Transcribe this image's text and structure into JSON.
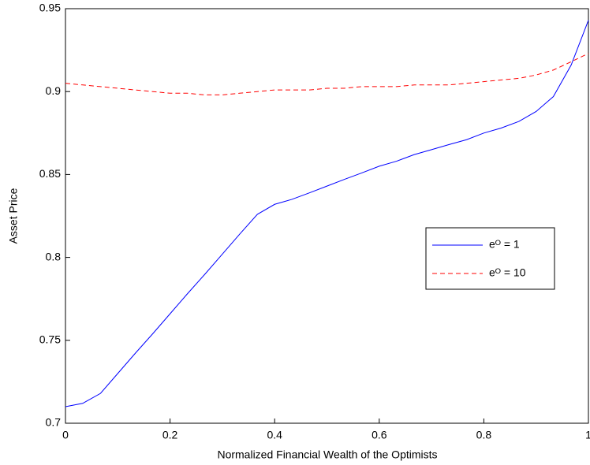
{
  "chart_data": {
    "type": "line",
    "xlabel": "Normalized Financial Wealth of the Optimists",
    "ylabel": "Asset Price",
    "x": [
      0,
      0.033,
      0.067,
      0.1,
      0.133,
      0.167,
      0.2,
      0.233,
      0.267,
      0.3,
      0.333,
      0.367,
      0.4,
      0.433,
      0.467,
      0.5,
      0.533,
      0.567,
      0.6,
      0.633,
      0.667,
      0.7,
      0.733,
      0.767,
      0.8,
      0.833,
      0.867,
      0.9,
      0.933,
      0.967,
      1
    ],
    "series": [
      {
        "name": "eᴼ = 1",
        "color": "#0000ff",
        "dash": "solid",
        "values": [
          0.71,
          0.712,
          0.718,
          0.73,
          0.742,
          0.754,
          0.766,
          0.778,
          0.79,
          0.802,
          0.814,
          0.826,
          0.832,
          0.835,
          0.839,
          0.843,
          0.847,
          0.851,
          0.855,
          0.858,
          0.862,
          0.865,
          0.868,
          0.871,
          0.875,
          0.878,
          0.882,
          0.888,
          0.897,
          0.916,
          0.943
        ]
      },
      {
        "name": "eᴼ = 10",
        "color": "#ff0000",
        "dash": "dashed",
        "values": [
          0.905,
          0.904,
          0.903,
          0.902,
          0.901,
          0.9,
          0.899,
          0.899,
          0.898,
          0.898,
          0.899,
          0.9,
          0.901,
          0.901,
          0.901,
          0.902,
          0.902,
          0.903,
          0.903,
          0.903,
          0.904,
          0.904,
          0.904,
          0.905,
          0.906,
          0.907,
          0.908,
          0.91,
          0.913,
          0.918,
          0.923
        ]
      }
    ],
    "xlim": [
      0,
      1
    ],
    "xticks": [
      0,
      0.2,
      0.4,
      0.6,
      0.8,
      1
    ],
    "ylim": [
      0.7,
      0.95
    ],
    "yticks": [
      0.7,
      0.75,
      0.8,
      0.85,
      0.9,
      0.95
    ],
    "grid": false,
    "legend_position": "right"
  }
}
